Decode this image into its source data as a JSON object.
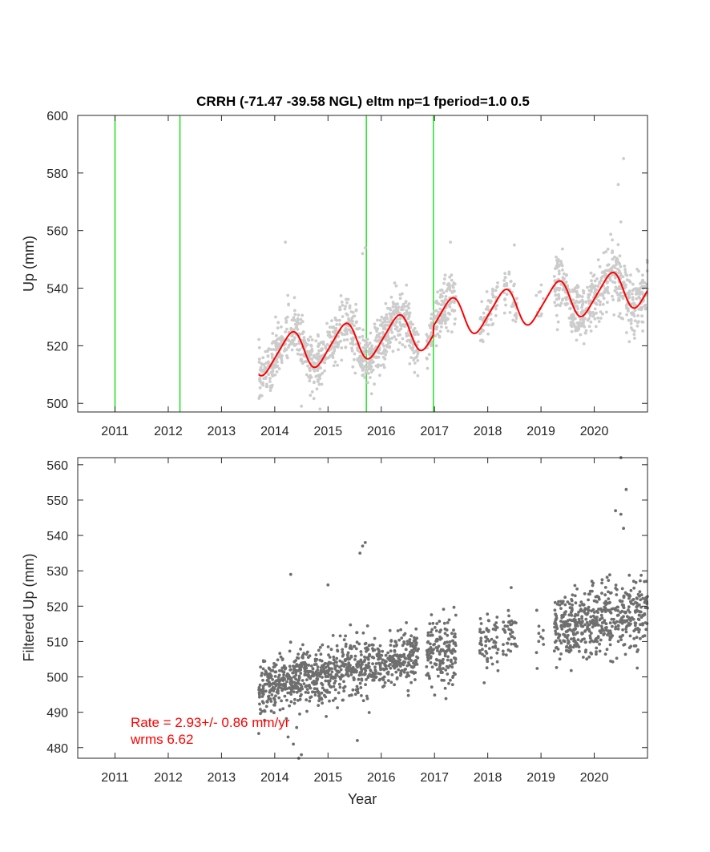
{
  "chart_data": [
    {
      "type": "scatter",
      "title": "CRRH (-71.47 -39.58 NGL) eltm np=1 fperiod=1.0 0.5",
      "xlabel": "",
      "ylabel": "Up (mm)",
      "xlim": [
        2010.3,
        2021.0
      ],
      "ylim": [
        497,
        600
      ],
      "xticks": [
        2011,
        2012,
        2013,
        2014,
        2015,
        2016,
        2017,
        2018,
        2019,
        2020
      ],
      "xtick_labels": [
        "2011",
        "2012",
        "2013",
        "2014",
        "2015",
        "2016",
        "2017",
        "2018",
        "2019",
        "2020"
      ],
      "yticks": [
        500,
        520,
        540,
        560,
        580,
        600
      ],
      "ytick_labels": [
        "500",
        "520",
        "540",
        "560",
        "580",
        "600"
      ],
      "grid": false,
      "colors": {
        "points": "#cccccc",
        "model": "#ff0000",
        "breaks": "#00dd00"
      },
      "breaks": [
        2011.0,
        2012.22,
        2015.72,
        2016.98
      ],
      "model": {
        "intercept": 520.0,
        "rate": 2.93,
        "ref_epoch": 2015.0,
        "annual_amp": 6.5,
        "annual_phase": 0.05,
        "semiannual_amp": 1.0,
        "semiannual_phase": 0.3,
        "offsets": [
          {
            "epoch": 2016.98,
            "value": 3.0
          }
        ],
        "start": 2013.7,
        "end": 2021.0
      },
      "series": [
        {
          "segments": [
            {
              "start": 2013.7,
              "end": 2016.7,
              "count": 900,
              "sigma": 4.5
            },
            {
              "start": 2016.85,
              "end": 2017.4,
              "count": 160,
              "sigma": 4.5
            },
            {
              "start": 2017.85,
              "end": 2018.2,
              "count": 60,
              "sigma": 4.0
            },
            {
              "start": 2018.28,
              "end": 2018.55,
              "count": 40,
              "sigma": 4.0
            },
            {
              "start": 2018.9,
              "end": 2019.05,
              "count": 10,
              "sigma": 4.0
            },
            {
              "start": 2019.25,
              "end": 2021.0,
              "count": 520,
              "sigma": 5.0
            }
          ],
          "outliers": [
            [
              2014.2,
              556
            ],
            [
              2015.7,
              554
            ],
            [
              2015.65,
              552
            ],
            [
              2020.55,
              585
            ],
            [
              2020.45,
              576
            ],
            [
              2020.5,
              563
            ],
            [
              2017.3,
              556
            ],
            [
              2018.5,
              555
            ],
            [
              2014.5,
              499
            ],
            [
              2014.85,
              498
            ]
          ]
        }
      ]
    },
    {
      "type": "scatter",
      "title": "",
      "xlabel": "Year",
      "ylabel": "Filtered Up (mm)",
      "xlim": [
        2010.3,
        2021.0
      ],
      "ylim": [
        477,
        562
      ],
      "xticks": [
        2011,
        2012,
        2013,
        2014,
        2015,
        2016,
        2017,
        2018,
        2019,
        2020
      ],
      "xtick_labels": [
        "2011",
        "2012",
        "2013",
        "2014",
        "2015",
        "2016",
        "2017",
        "2018",
        "2019",
        "2020"
      ],
      "yticks": [
        480,
        490,
        500,
        510,
        520,
        530,
        540,
        550,
        560
      ],
      "ytick_labels": [
        "480",
        "490",
        "500",
        "510",
        "520",
        "530",
        "540",
        "550",
        "560"
      ],
      "grid": false,
      "colors": {
        "points": "#6e6e6e",
        "annotation": "#ff0000"
      },
      "annotation": {
        "rate": "Rate = 2.93+/- 0.86 mm/yr",
        "wrms": "wrms 6.62"
      },
      "trend": {
        "value_at_2014": 498.0,
        "rate": 2.93
      },
      "series": [
        {
          "segments": [
            {
              "start": 2013.7,
              "end": 2016.7,
              "count": 900,
              "sigma": 4.0
            },
            {
              "start": 2016.85,
              "end": 2017.4,
              "count": 160,
              "sigma": 4.5
            },
            {
              "start": 2017.85,
              "end": 2018.2,
              "count": 60,
              "sigma": 4.0
            },
            {
              "start": 2018.28,
              "end": 2018.55,
              "count": 40,
              "sigma": 4.0
            },
            {
              "start": 2018.9,
              "end": 2019.05,
              "count": 10,
              "sigma": 4.0
            },
            {
              "start": 2019.25,
              "end": 2021.0,
              "count": 520,
              "sigma": 5.0
            }
          ],
          "outliers": [
            [
              2015.6,
              535
            ],
            [
              2015.7,
              538
            ],
            [
              2015.65,
              537
            ],
            [
              2020.4,
              547
            ],
            [
              2020.5,
              546
            ],
            [
              2020.55,
              542
            ],
            [
              2020.6,
              553
            ],
            [
              2020.5,
              562
            ],
            [
              2014.5,
              478
            ],
            [
              2014.45,
              477
            ],
            [
              2014.35,
              481
            ],
            [
              2014.25,
              483
            ],
            [
              2013.7,
              484
            ],
            [
              2015.55,
              482
            ],
            [
              2015.0,
              526
            ],
            [
              2014.3,
              529
            ]
          ]
        }
      ]
    }
  ]
}
